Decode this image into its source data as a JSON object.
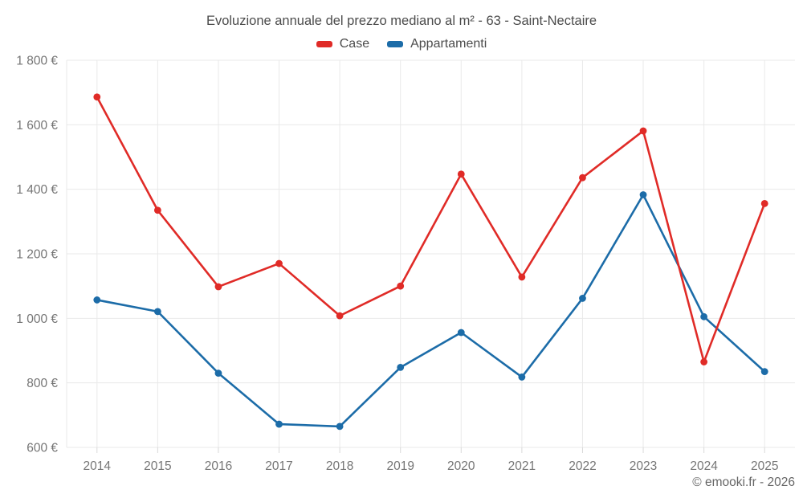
{
  "chart_data": {
    "type": "line",
    "title": "Evoluzione annuale del prezzo mediano al m² - 63 - Saint-Nectaire",
    "x": [
      "2014",
      "2015",
      "2016",
      "2017",
      "2018",
      "2019",
      "2020",
      "2021",
      "2022",
      "2023",
      "2024",
      "2025"
    ],
    "series": [
      {
        "name": "Case",
        "color": "#e02b27",
        "values": [
          1686,
          1335,
          1098,
          1170,
          1008,
          1100,
          1447,
          1128,
          1436,
          1581,
          865,
          1356
        ]
      },
      {
        "name": "Appartamenti",
        "color": "#1c6ca8",
        "values": [
          1057,
          1021,
          830,
          672,
          665,
          848,
          956,
          818,
          1062,
          1383,
          1005,
          835
        ]
      }
    ],
    "ylim": [
      600,
      1800
    ],
    "yticks": [
      600,
      800,
      1000,
      1200,
      1400,
      1600,
      1800
    ],
    "ytick_labels": [
      "600 €",
      "800 €",
      "1 000 €",
      "1 200 €",
      "1 400 €",
      "1 600 €",
      "1 800 €"
    ],
    "grid": true,
    "legend_position": "top",
    "watermark": "© emooki.fr - 2026"
  },
  "colors": {
    "grid_line": "#e9e9e9",
    "tick_mark": "#d9d9d9",
    "axis_text": "#757575",
    "title_text": "#4c4c4c",
    "background": "#ffffff"
  }
}
